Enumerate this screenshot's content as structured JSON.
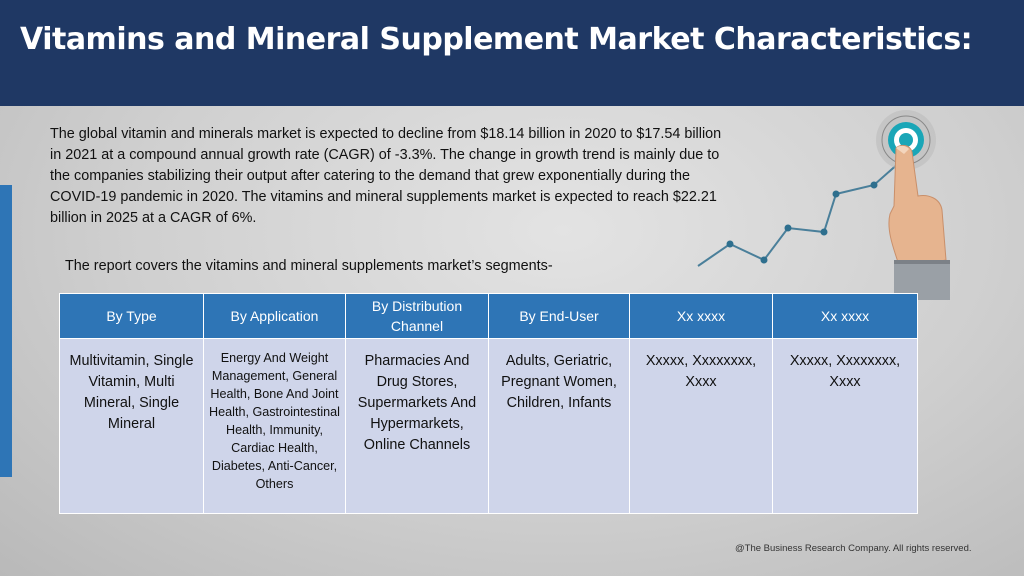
{
  "header": {
    "title": "Vitamins and Mineral Supplement Market Characteristics:"
  },
  "intro": {
    "paragraph": "The global vitamin and minerals market is expected to decline from $18.14 billion in 2020 to $17.54 billion in 2021 at a compound annual growth rate (CAGR) of -3.3%. The change in growth trend is mainly due to the companies stabilizing their output after catering to the demand that grew exponentially during the COVID-19 pandemic in 2020. The vitamins and mineral supplements market is expected to reach $22.21 billion in 2025 at a CAGR of 6%.",
    "report_line": "The report covers the vitamins and mineral supplements market’s segments-"
  },
  "table": {
    "headers": [
      "By Type",
      "By Application",
      "By Distribution Channel",
      "By End-User",
      "Xx xxxx",
      "Xx xxxx"
    ],
    "cells": [
      "Multivitamin, Single Vitamin, Multi Mineral, Single Mineral",
      "Energy And Weight Management, General Health, Bone And Joint Health, Gastrointestinal Health, Immunity, Cardiac Health, Diabetes, Anti-Cancer, Others",
      "Pharmacies And Drug Stores, Supermarkets And Hypermarkets, Online Channels",
      "Adults, Geriatric, Pregnant Women, Children, Infants",
      "Xxxxx, Xxxxxxxx, Xxxx",
      "Xxxxx, Xxxxxxxx, Xxxx"
    ]
  },
  "footer": {
    "copyright": "@The Business Research Company. All rights reserved."
  },
  "graphic": {
    "icon": "hand-touching-target-growth-chart-icon",
    "line_color": "#4a7f9a",
    "target_color": "#1aa6b7"
  }
}
